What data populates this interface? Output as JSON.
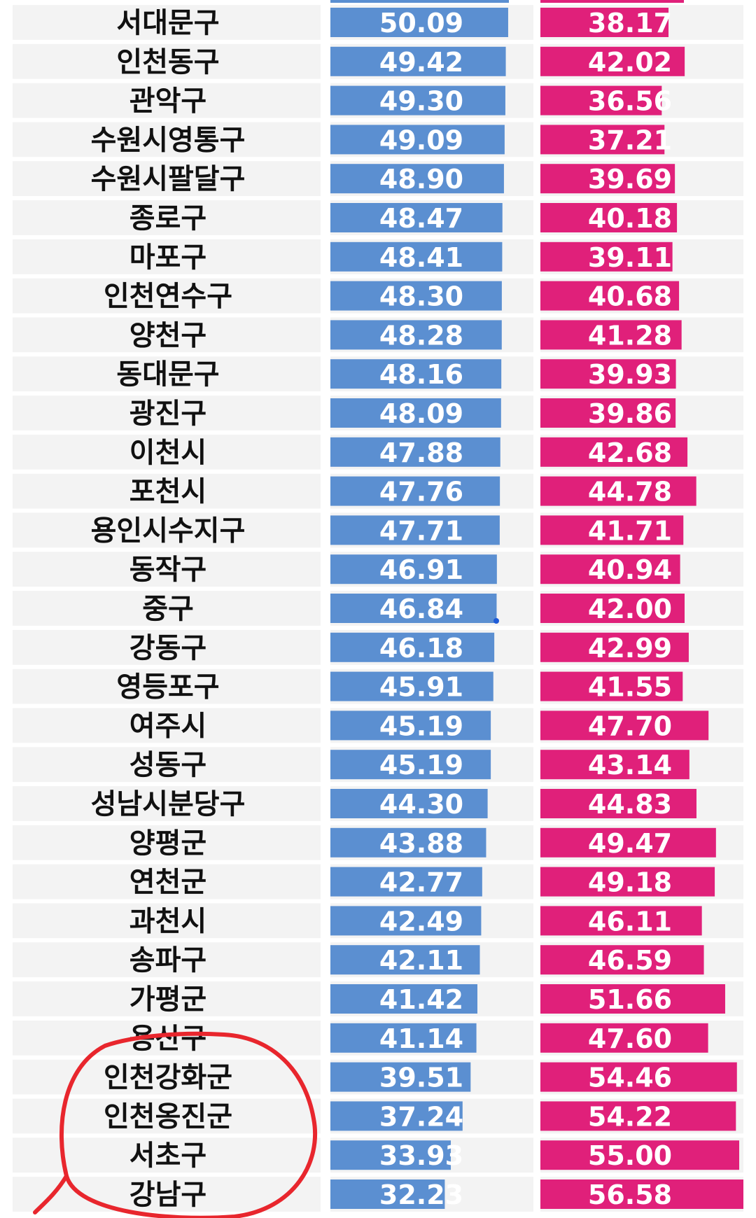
{
  "chart_data": {
    "type": "bar",
    "orientation": "horizontal",
    "title": "",
    "xlabel": "",
    "ylabel": "",
    "grid": false,
    "categories": [
      "서대문구",
      "인천동구",
      "관악구",
      "수원시영통구",
      "수원시팔달구",
      "종로구",
      "마포구",
      "인천연수구",
      "양천구",
      "동대문구",
      "광진구",
      "이천시",
      "포천시",
      "용인시수지구",
      "동작구",
      "중구",
      "강동구",
      "영등포구",
      "여주시",
      "성동구",
      "성남시분당구",
      "양평군",
      "연천군",
      "과천시",
      "송파구",
      "가평군",
      "용산구",
      "인천강화군",
      "인천옹진군",
      "서초구",
      "강남구"
    ],
    "series": [
      {
        "color": "#5b8fd1",
        "values": [
          50.09,
          49.42,
          49.3,
          49.09,
          48.9,
          48.47,
          48.41,
          48.3,
          48.28,
          48.16,
          48.09,
          47.88,
          47.76,
          47.71,
          46.91,
          46.84,
          46.18,
          45.91,
          45.19,
          45.19,
          44.3,
          43.88,
          42.77,
          42.49,
          42.11,
          41.42,
          41.14,
          39.51,
          37.24,
          33.93,
          32.23
        ],
        "labels": [
          "50.09",
          "49.42",
          "49.30",
          "49.09",
          "48.90",
          "48.47",
          "48.41",
          "48.30",
          "48.28",
          "48.16",
          "48.09",
          "47.88",
          "47.76",
          "47.71",
          "46.91",
          "46.84",
          "46.18",
          "45.91",
          "45.19",
          "45.19",
          "44.30",
          "43.88",
          "42.77",
          "42.49",
          "42.11",
          "41.42",
          "41.14",
          "39.51",
          "37.24",
          "33.93",
          "32.23"
        ]
      },
      {
        "color": "#e0207a",
        "values": [
          38.17,
          42.02,
          36.56,
          37.21,
          39.69,
          40.18,
          39.11,
          40.68,
          41.28,
          39.93,
          39.86,
          42.68,
          44.78,
          41.71,
          40.94,
          42.0,
          42.99,
          41.55,
          47.7,
          43.14,
          44.83,
          49.47,
          49.18,
          46.11,
          46.59,
          51.66,
          47.6,
          54.46,
          54.22,
          55.0,
          56.58
        ],
        "labels": [
          "38.17",
          "42.02",
          "36.56",
          "37.21",
          "39.69",
          "40.18",
          "39.11",
          "40.68",
          "41.28",
          "39.93",
          "39.86",
          "42.68",
          "44.78",
          "41.71",
          "40.94",
          "42.00",
          "42.99",
          "41.55",
          "47.70",
          "43.14",
          "44.83",
          "49.47",
          "49.18",
          "46.11",
          "46.59",
          "51.66",
          "47.60",
          "54.46",
          "54.22",
          "55.00",
          "56.58"
        ]
      }
    ],
    "annotations": [
      {
        "type": "hand-drawn-circle",
        "color": "#e8262d",
        "covers": [
          "인천강화군",
          "인천옹진군",
          "서초구",
          "강남구"
        ]
      }
    ]
  }
}
